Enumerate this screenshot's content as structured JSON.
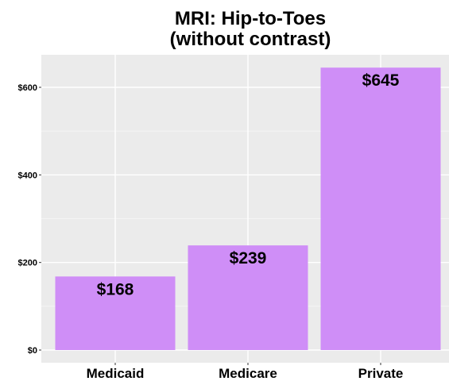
{
  "chart_data": {
    "type": "bar",
    "title": [
      "MRI: Hip-to-Toes",
      "(without contrast)"
    ],
    "xlabel": "",
    "ylabel": "",
    "categories": [
      "Medicaid",
      "Medicare",
      "Private"
    ],
    "values": [
      168,
      239,
      645
    ],
    "data_labels": [
      "$168",
      "$239",
      "$645"
    ],
    "ylim": [
      0,
      700
    ],
    "y_ticks": [
      0,
      200,
      400,
      600
    ],
    "y_tick_labels": [
      "$0",
      "$200",
      "$400",
      "$600"
    ],
    "bar_color": "#cf8ef7",
    "panel_color": "#ebebeb",
    "grid": true,
    "legend": "none"
  }
}
